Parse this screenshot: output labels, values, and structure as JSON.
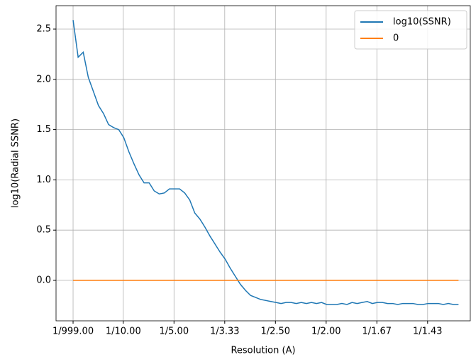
{
  "chart_data": {
    "type": "line",
    "x_label": "Resolution (A)",
    "y_label": "log10(Radial SSNR)",
    "xlim": [
      -0.0326,
      0.7842
    ],
    "ylim": [
      -0.4025,
      2.733
    ],
    "xticks": [
      {
        "value": 0.001,
        "label": "1/999.00"
      },
      {
        "value": 0.1,
        "label": "1/10.00"
      },
      {
        "value": 0.2,
        "label": "1/5.00"
      },
      {
        "value": 0.3,
        "label": "1/3.33"
      },
      {
        "value": 0.4,
        "label": "1/2.50"
      },
      {
        "value": 0.5,
        "label": "1/2.00"
      },
      {
        "value": 0.6,
        "label": "1/1.67"
      },
      {
        "value": 0.7,
        "label": "1/1.43"
      }
    ],
    "yticks": [
      {
        "value": 0,
        "label": "0.0"
      },
      {
        "value": 0.5,
        "label": "0.5"
      },
      {
        "value": 1,
        "label": "1.0"
      },
      {
        "value": 1.5,
        "label": "1.5"
      },
      {
        "value": 2,
        "label": "2.0"
      },
      {
        "value": 2.5,
        "label": "2.5"
      }
    ],
    "grid": true,
    "legend": "upper-right",
    "series": [
      {
        "name": "log10(SSNR)",
        "color": "#1f77b4",
        "x": [
          0.001,
          0.011,
          0.021,
          0.031,
          0.041,
          0.051,
          0.061,
          0.071,
          0.081,
          0.091,
          0.101,
          0.111,
          0.121,
          0.131,
          0.141,
          0.151,
          0.161,
          0.171,
          0.181,
          0.191,
          0.201,
          0.211,
          0.221,
          0.231,
          0.241,
          0.251,
          0.261,
          0.271,
          0.281,
          0.291,
          0.301,
          0.311,
          0.321,
          0.331,
          0.341,
          0.351,
          0.361,
          0.371,
          0.381,
          0.391,
          0.401,
          0.411,
          0.421,
          0.431,
          0.441,
          0.451,
          0.461,
          0.471,
          0.481,
          0.491,
          0.501,
          0.511,
          0.521,
          0.531,
          0.541,
          0.551,
          0.561,
          0.571,
          0.581,
          0.591,
          0.601,
          0.611,
          0.621,
          0.631,
          0.641,
          0.651,
          0.661,
          0.671,
          0.681,
          0.691,
          0.701,
          0.711,
          0.721,
          0.731,
          0.741,
          0.751,
          0.761
        ],
        "values": [
          2.59,
          2.22,
          2.27,
          2.02,
          1.88,
          1.74,
          1.66,
          1.55,
          1.52,
          1.5,
          1.42,
          1.28,
          1.16,
          1.05,
          0.97,
          0.97,
          0.89,
          0.86,
          0.87,
          0.91,
          0.91,
          0.91,
          0.87,
          0.8,
          0.67,
          0.61,
          0.53,
          0.44,
          0.36,
          0.28,
          0.21,
          0.12,
          0.04,
          -0.04,
          -0.1,
          -0.15,
          -0.17,
          -0.19,
          -0.2,
          -0.21,
          -0.22,
          -0.23,
          -0.22,
          -0.22,
          -0.23,
          -0.22,
          -0.23,
          -0.22,
          -0.23,
          -0.22,
          -0.24,
          -0.24,
          -0.24,
          -0.23,
          -0.24,
          -0.22,
          -0.23,
          -0.22,
          -0.21,
          -0.23,
          -0.22,
          -0.22,
          -0.23,
          -0.23,
          -0.24,
          -0.23,
          -0.23,
          -0.23,
          -0.24,
          -0.24,
          -0.23,
          -0.23,
          -0.23,
          -0.24,
          -0.23,
          -0.24,
          -0.24
        ]
      },
      {
        "name": "0",
        "color": "#ff7f0e",
        "x": [
          0.001,
          0.761
        ],
        "values": [
          0,
          0
        ]
      }
    ]
  }
}
